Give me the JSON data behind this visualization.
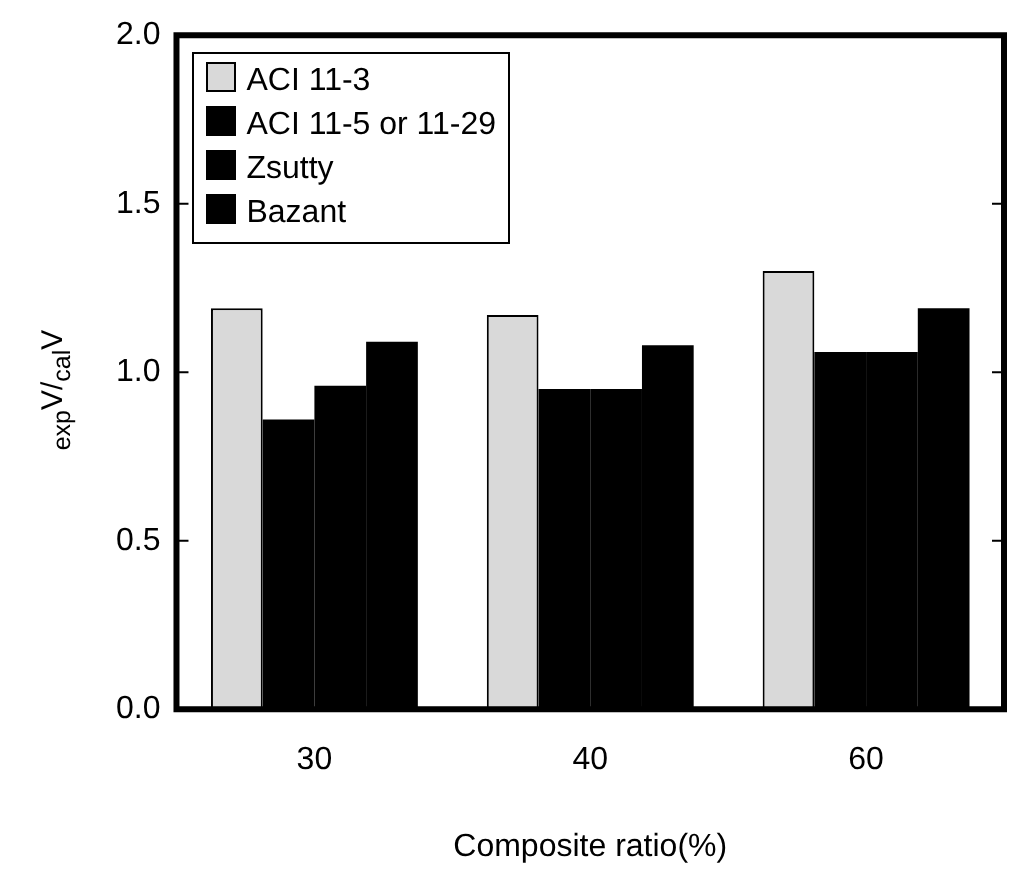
{
  "chart_data": {
    "type": "bar",
    "xlabel": "Composite ratio(%)",
    "ylabel": "$_{exp}$V/$_{cal}$V",
    "categories": [
      "30",
      "40",
      "60"
    ],
    "series": [
      {
        "name": "ACI 11-3",
        "color": "#d9d9d9",
        "values": [
          1.19,
          1.17,
          1.3
        ]
      },
      {
        "name": "ACI 11-5 or 11-29",
        "color": "#000000",
        "values": [
          0.86,
          0.95,
          1.06
        ]
      },
      {
        "name": "Zsutty",
        "color": "#000000",
        "values": [
          0.96,
          0.95,
          1.06
        ]
      },
      {
        "name": "Bazant",
        "color": "#000000",
        "values": [
          1.09,
          1.08,
          1.19
        ]
      }
    ],
    "ylim": [
      0,
      2
    ],
    "yticks": [
      {
        "value": 0,
        "label": "0.0"
      },
      {
        "value": 0.5,
        "label": "0.5"
      },
      {
        "value": 1,
        "label": "1.0"
      },
      {
        "value": 1.5,
        "label": "1.5"
      },
      {
        "value": 2,
        "label": "2.0"
      }
    ],
    "grid": false,
    "legend": "top left"
  }
}
